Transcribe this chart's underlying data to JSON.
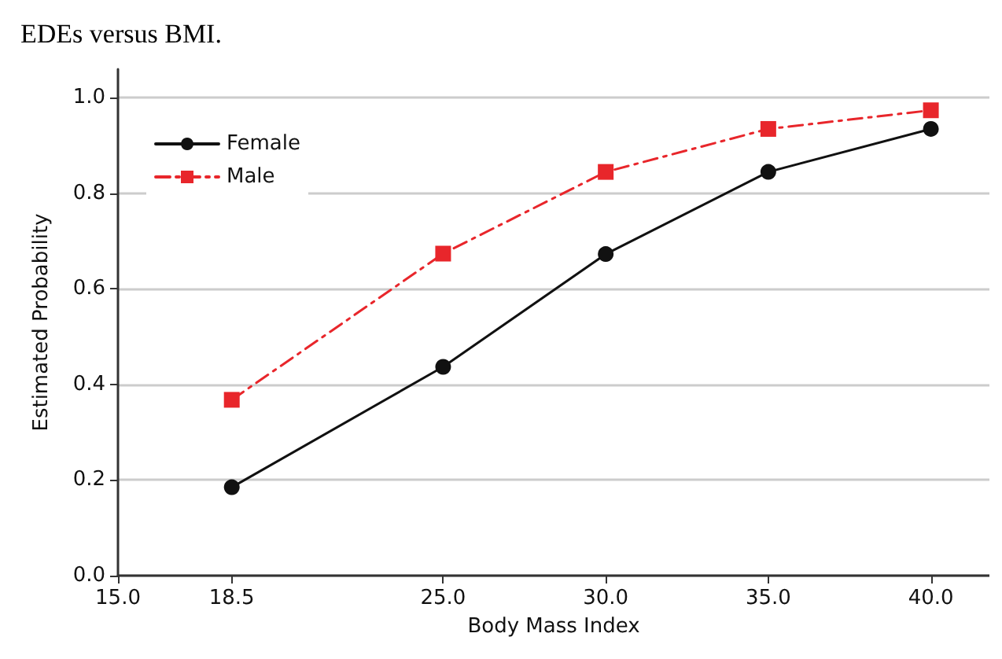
{
  "chart_data": {
    "type": "line",
    "title": "EDEs versus BMI.",
    "xlabel": "Body Mass Index",
    "ylabel": "Estimated Probability",
    "x": [
      18.5,
      25,
      30,
      35,
      40
    ],
    "series": [
      {
        "name": "Female",
        "color": "#111111",
        "marker": "circle",
        "line_style": "solid",
        "values": [
          0.185,
          0.437,
          0.673,
          0.845,
          0.935
        ]
      },
      {
        "name": "Male",
        "color": "#e8262b",
        "marker": "square",
        "line_style": "dashed",
        "values": [
          0.368,
          0.674,
          0.845,
          0.935,
          0.974
        ]
      }
    ],
    "xlim": [
      15,
      41.8
    ],
    "xticks": [
      {
        "value": 15,
        "label": "15.0"
      },
      18.5,
      {
        "value": 25,
        "label": "25.0"
      },
      {
        "value": 30,
        "label": "30.0"
      },
      {
        "value": 35,
        "label": "35.0"
      },
      {
        "value": 40,
        "label": "40.0"
      }
    ],
    "ylim": [
      0,
      1.06
    ],
    "yticks": [
      {
        "value": 0,
        "label": "0.0"
      },
      0.2,
      0.4,
      0.6,
      0.8,
      {
        "value": 1,
        "label": "1.0"
      }
    ],
    "grid": "y",
    "legend": "top left"
  }
}
